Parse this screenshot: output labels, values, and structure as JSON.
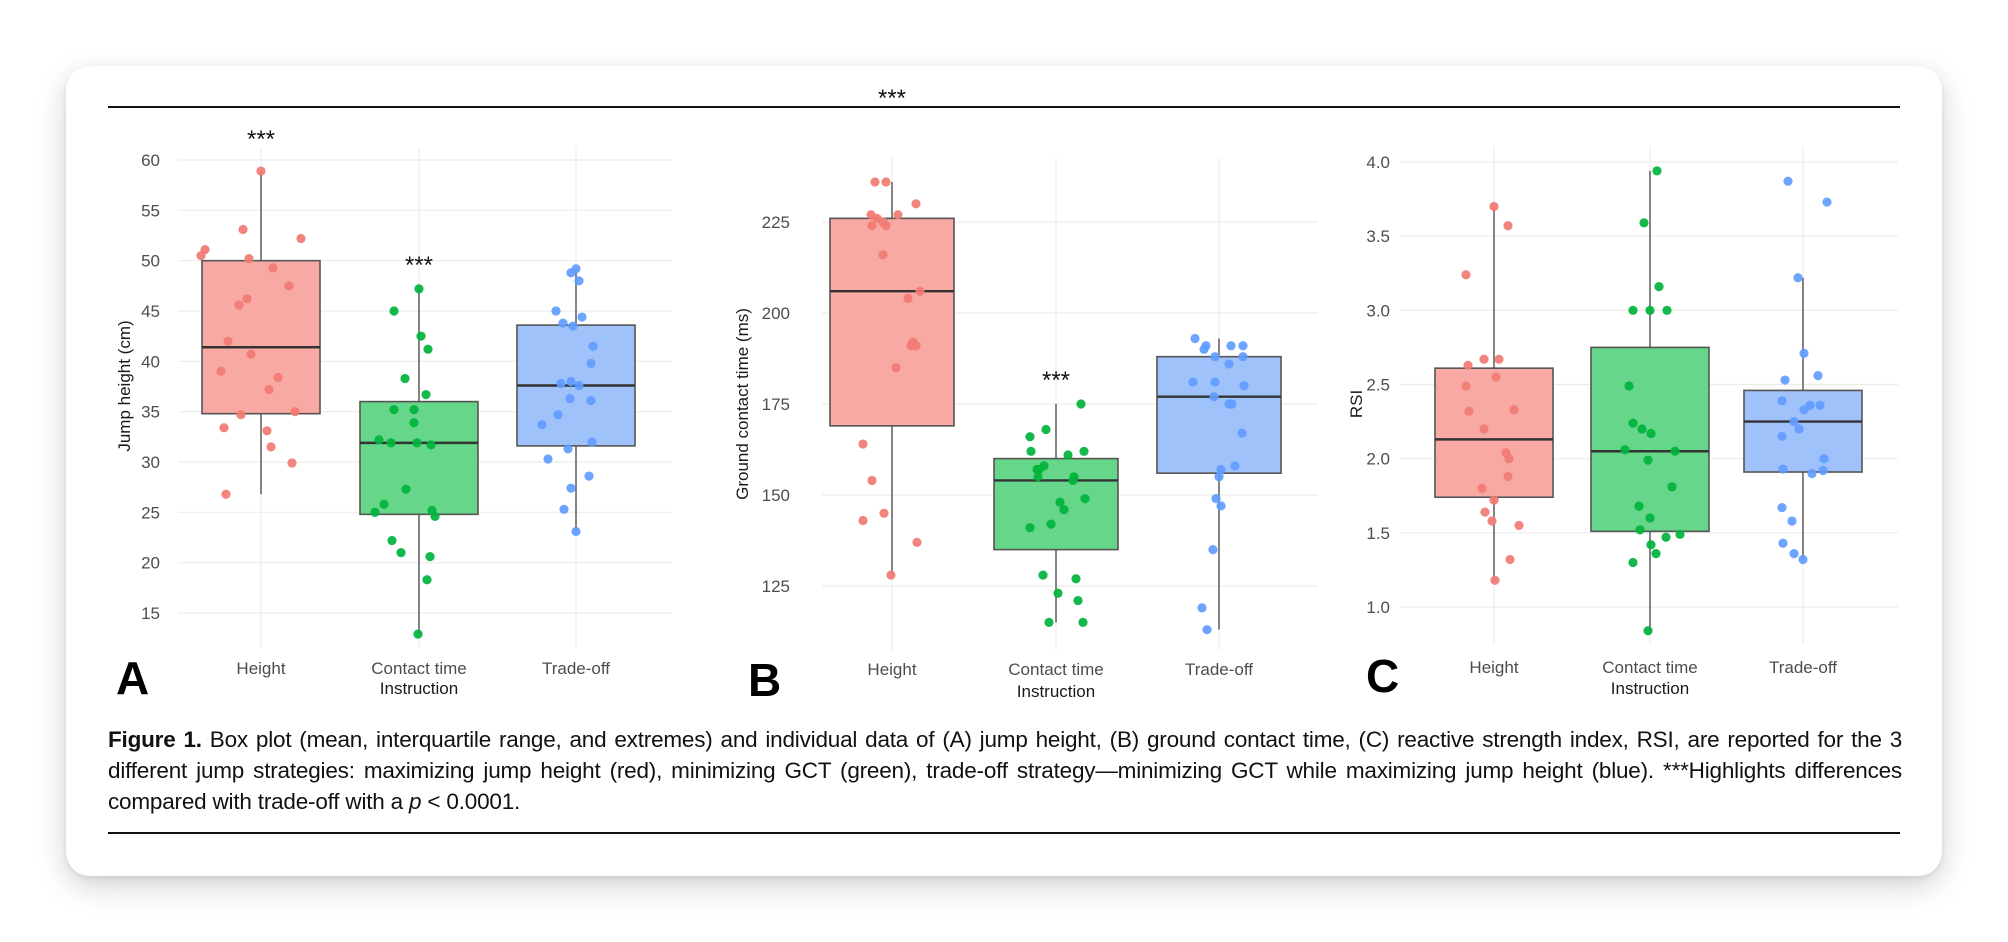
{
  "figure": {
    "caption": {
      "label": "Figure 1.",
      "text_1": " Box plot (mean, interquartile range, and extremes) and individual data of (A) jump height, (B) ground contact time, (C) reactive strength index, RSI, are reported for the 3 different jump strategies: maximizing jump height (red), minimizing GCT (green), trade-off strategy—minimizing GCT while maximizing jump height (blue). ***Highlights differences compared with trade-off with a ",
      "p_symbol": "p",
      "text_2": " < 0.0001."
    }
  },
  "colors": {
    "red_point": "#f07b73",
    "red_fill": "#f8a9a4",
    "green_point": "#00b33c",
    "green_fill": "#66d68a",
    "blue_point": "#619cff",
    "blue_fill": "#9fc2fb",
    "box_stroke": "#555555",
    "median": "#333333",
    "grid": "#ececec"
  },
  "chart_data": [
    {
      "type": "box",
      "panel": "A",
      "title": "",
      "xlabel": "Instruction",
      "ylabel": "Jump height (cm)",
      "categories": [
        "Height",
        "Contact time",
        "Trade-off"
      ],
      "yticks": [
        15,
        20,
        25,
        30,
        35,
        40,
        45,
        50,
        55,
        60
      ],
      "ylim": [
        11.5,
        61.5
      ],
      "grid": true,
      "significance": [
        "***",
        "***",
        ""
      ],
      "series": [
        {
          "name": "Height",
          "color": "red",
          "box": {
            "lower_whisker": 26.8,
            "q1": 34.8,
            "median": 41.4,
            "q3": 50.0,
            "upper_whisker": 58.9
          },
          "points": [
            58.9,
            53.1,
            52.2,
            51.1,
            50.5,
            50.2,
            49.3,
            47.5,
            46.2,
            45.6,
            42.0,
            40.7,
            39.0,
            38.4,
            37.2,
            35.0,
            34.7,
            33.4,
            33.1,
            31.5,
            29.9,
            26.8
          ]
        },
        {
          "name": "Contact time",
          "color": "green",
          "box": {
            "lower_whisker": 12.9,
            "q1": 24.8,
            "median": 31.9,
            "q3": 36.0,
            "upper_whisker": 47.2
          },
          "points": [
            47.2,
            45.0,
            42.5,
            41.2,
            38.3,
            36.7,
            35.2,
            35.2,
            33.9,
            32.2,
            31.9,
            31.9,
            31.7,
            27.3,
            25.8,
            25.2,
            25.0,
            24.6,
            22.2,
            21.0,
            20.6,
            18.3,
            12.9
          ]
        },
        {
          "name": "Trade-off",
          "color": "blue",
          "box": {
            "lower_whisker": 23.1,
            "q1": 31.6,
            "median": 37.6,
            "q3": 43.6,
            "upper_whisker": 49.2
          },
          "points": [
            49.2,
            48.8,
            48.0,
            45.0,
            44.4,
            43.8,
            43.5,
            41.5,
            39.8,
            38.0,
            37.8,
            37.6,
            36.3,
            36.1,
            34.7,
            33.7,
            32.0,
            31.3,
            30.3,
            28.6,
            27.4,
            25.3,
            23.1
          ]
        }
      ]
    },
    {
      "type": "box",
      "panel": "B",
      "title": "",
      "xlabel": "Instruction",
      "ylabel": "Ground contact time (ms)",
      "categories": [
        "Height",
        "Contact time",
        "Trade-off"
      ],
      "yticks": [
        125,
        150,
        175,
        200,
        225
      ],
      "ylim": [
        108,
        242
      ],
      "grid": true,
      "significance": [
        "***",
        "***",
        ""
      ],
      "series": [
        {
          "name": "Height",
          "color": "red",
          "box": {
            "lower_whisker": 128,
            "q1": 169,
            "median": 206,
            "q3": 226,
            "upper_whisker": 236
          },
          "points": [
            236,
            236,
            230,
            227,
            226,
            225,
            224,
            224,
            227,
            216,
            206,
            204,
            192,
            191,
            191,
            185,
            164,
            154,
            145,
            143,
            137,
            128
          ]
        },
        {
          "name": "Contact time",
          "color": "green",
          "box": {
            "lower_whisker": 115,
            "q1": 135,
            "median": 154,
            "q3": 160,
            "upper_whisker": 175
          },
          "points": [
            175,
            168,
            166,
            162,
            162,
            161,
            158,
            157,
            157,
            155,
            155,
            154,
            149,
            148,
            146,
            142,
            141,
            128,
            127,
            123,
            121,
            115,
            115
          ]
        },
        {
          "name": "Trade-off",
          "color": "blue",
          "box": {
            "lower_whisker": 113,
            "q1": 156,
            "median": 177,
            "q3": 188,
            "upper_whisker": 193
          },
          "points": [
            193,
            191,
            191,
            191,
            190,
            188,
            188,
            186,
            181,
            181,
            180,
            177,
            175,
            175,
            167,
            158,
            157,
            155,
            149,
            147,
            135,
            119,
            113
          ]
        }
      ]
    },
    {
      "type": "box",
      "panel": "C",
      "title": "",
      "xlabel": "Instruction",
      "ylabel": "RSI",
      "categories": [
        "Height",
        "Contact time",
        "Trade-off"
      ],
      "yticks": [
        "1.0",
        "1.5",
        "2.0",
        "2.5",
        "3.0",
        "3.5",
        "4.0"
      ],
      "ylim": [
        0.75,
        4.1
      ],
      "grid": true,
      "significance": [
        "",
        "",
        ""
      ],
      "series": [
        {
          "name": "Height",
          "color": "red",
          "box": {
            "lower_whisker": 1.18,
            "q1": 1.74,
            "median": 2.13,
            "q3": 2.61,
            "upper_whisker": 3.7
          },
          "points": [
            3.7,
            3.57,
            3.24,
            2.67,
            2.67,
            2.63,
            2.55,
            2.49,
            2.33,
            2.32,
            2.2,
            2.04,
            2.0,
            1.88,
            1.8,
            1.72,
            1.64,
            1.58,
            1.55,
            1.32,
            1.18
          ]
        },
        {
          "name": "Contact time",
          "color": "green",
          "box": {
            "lower_whisker": 0.84,
            "q1": 1.51,
            "median": 2.05,
            "q3": 2.75,
            "upper_whisker": 3.94
          },
          "points": [
            3.94,
            3.59,
            3.16,
            3.0,
            3.0,
            3.0,
            2.49,
            2.24,
            2.2,
            2.17,
            2.06,
            2.05,
            1.99,
            1.81,
            1.68,
            1.6,
            1.52,
            1.49,
            1.47,
            1.42,
            1.36,
            1.3,
            0.84
          ]
        },
        {
          "name": "Trade-off",
          "color": "blue",
          "box": {
            "lower_whisker": 1.32,
            "q1": 1.91,
            "median": 2.25,
            "q3": 2.46,
            "upper_whisker": 3.22
          },
          "points": [
            3.87,
            3.73,
            3.22,
            2.71,
            2.56,
            2.53,
            2.39,
            2.36,
            2.36,
            2.33,
            2.25,
            2.2,
            2.15,
            2.0,
            1.93,
            1.92,
            1.9,
            1.67,
            1.58,
            1.43,
            1.36,
            1.32
          ]
        }
      ]
    }
  ]
}
